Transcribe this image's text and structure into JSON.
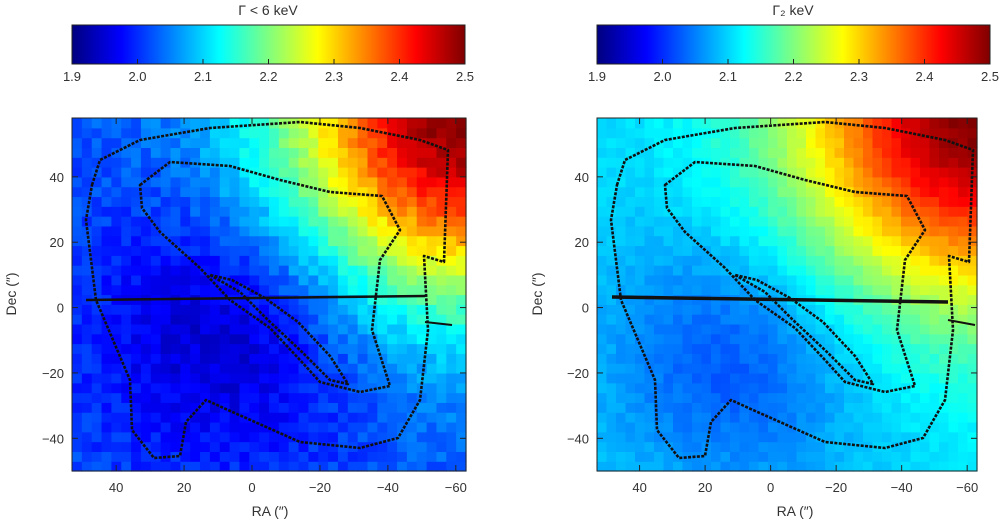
{
  "chart_data": [
    {
      "type": "heatmap",
      "title": "Γ < 6 keV",
      "colorbar": {
        "min": 1.9,
        "max": 2.5,
        "ticks": [
          "1.9",
          "2.0",
          "2.1",
          "2.2",
          "2.3",
          "2.4",
          "2.5"
        ]
      },
      "xlabel": "RA (″)",
      "ylabel": "Dec (″)",
      "xlim": [
        53,
        -63
      ],
      "ylim": [
        -50,
        58
      ],
      "xticks": [
        40,
        20,
        0,
        -20,
        -40,
        -60
      ],
      "xtick_labels": [
        "40",
        "20",
        "0",
        "−20",
        "−40",
        "−60"
      ],
      "yticks": [
        40,
        20,
        0,
        -20,
        -40
      ],
      "ytick_labels": [
        "40",
        "20",
        "0",
        "−20",
        "−40"
      ],
      "field": {
        "base": 2.02,
        "core_min": 1.93,
        "core_x": 5,
        "core_y": -5,
        "hot_max": 2.5,
        "hot_x": -63,
        "hot_y": 58,
        "noise": 0.02
      }
    },
    {
      "type": "heatmap",
      "title": "Γ₂ keV",
      "colorbar": {
        "min": 1.9,
        "max": 2.5,
        "ticks": [
          "1.9",
          "2.0",
          "2.1",
          "2.2",
          "2.3",
          "2.4",
          "2.5"
        ]
      },
      "xlabel": "RA (″)",
      "ylabel": "Dec (″)",
      "xlim": [
        53,
        -63
      ],
      "ylim": [
        -50,
        58
      ],
      "xticks": [
        40,
        20,
        0,
        -20,
        -40,
        -60
      ],
      "xtick_labels": [
        "40",
        "20",
        "0",
        "−20",
        "−40",
        "−60"
      ],
      "yticks": [
        40,
        20,
        0,
        -20,
        -40
      ],
      "ytick_labels": [
        "40",
        "20",
        "0",
        "−20",
        "−40"
      ],
      "field": {
        "base": 2.1,
        "core_min": 2.02,
        "core_x": 10,
        "core_y": -15,
        "hot_max": 2.5,
        "hot_x": -63,
        "hot_y": 58,
        "noise": 0.01
      }
    }
  ]
}
